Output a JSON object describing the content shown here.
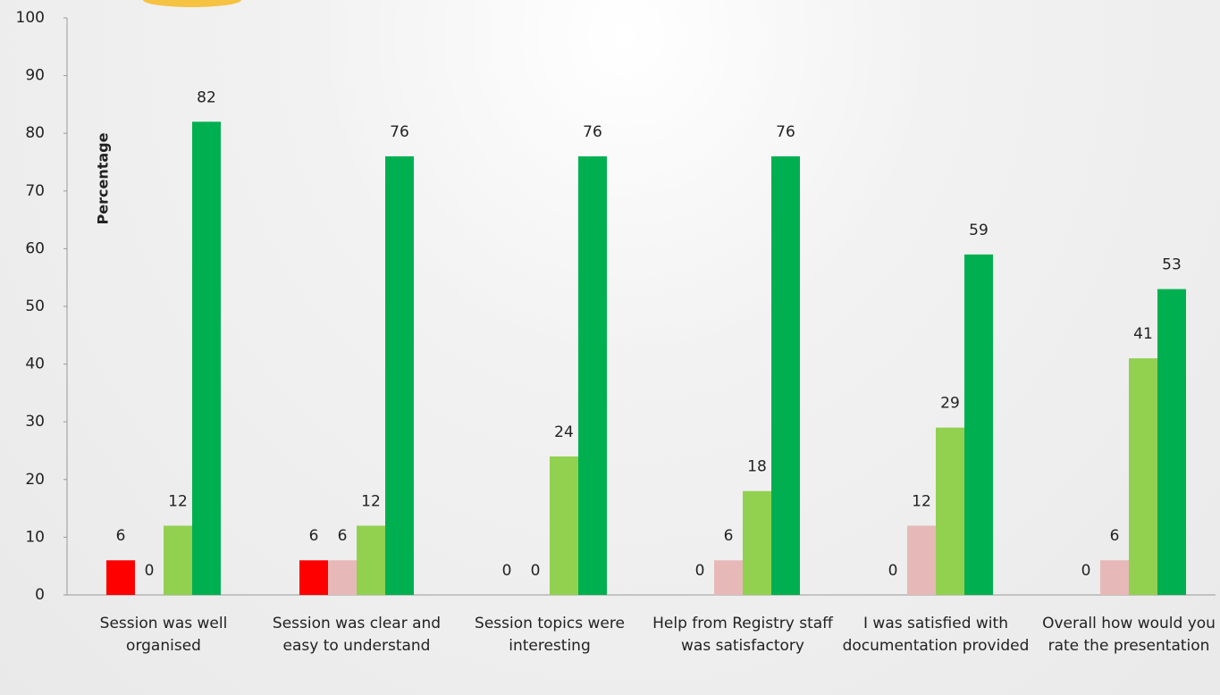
{
  "chart_data": {
    "type": "bar",
    "y_label": "Percentage",
    "categories": [
      "Session was well organised",
      "Session was clear and easy to understand",
      "Session topics were interesting",
      "Help from Registry staff was satisfactory",
      "I was satisfied with documentation provided",
      "Overall how would you rate the presentation"
    ],
    "series": [
      {
        "color": "#ff0000",
        "values": [
          6,
          6,
          0,
          0,
          0,
          0
        ]
      },
      {
        "color": "#e6b9b8",
        "values": [
          0,
          6,
          0,
          6,
          12,
          6
        ]
      },
      {
        "color": "#92d050",
        "values": [
          12,
          12,
          24,
          18,
          29,
          41
        ]
      },
      {
        "color": "#00b050",
        "values": [
          82,
          76,
          76,
          76,
          59,
          53
        ]
      }
    ],
    "ylim": [
      0,
      100
    ],
    "yticks": [
      0,
      10,
      20,
      30,
      40,
      50,
      60,
      70,
      80,
      90,
      100
    ]
  }
}
